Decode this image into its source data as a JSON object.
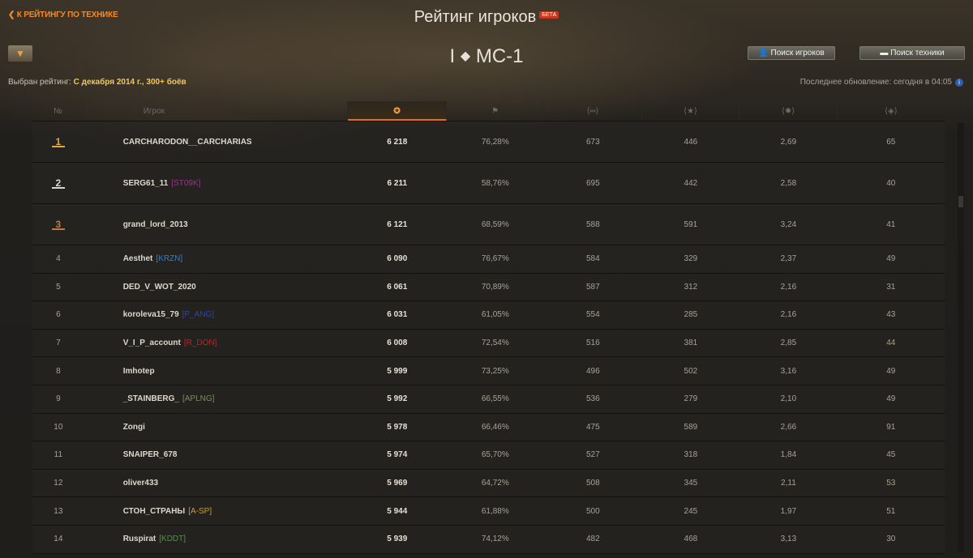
{
  "nav": {
    "back_label": "К РЕЙТИНГУ ПО ТЕХНИКЕ"
  },
  "header": {
    "title": "Рейтинг игроков",
    "beta": "БЕТА",
    "tier": "I",
    "tank": "МС-1"
  },
  "filter": {
    "label": "Выбран рейтинг:",
    "value": "С декабря 2014 г., 300+ боёв"
  },
  "buttons": {
    "players": "Поиск игроков",
    "tanks": "Поиск техники"
  },
  "update": "Последнее обновление: сегодня в 04:05",
  "columns": [
    "№",
    "Игрок",
    "rating-icon",
    "wins-flag-icon",
    "damage-icon",
    "xp-star-icon",
    "kills-icon",
    "spotted-icon"
  ],
  "medal_colors": {
    "1": "#e0a64a",
    "2": "#d6d6d6",
    "3": "#c07a4a"
  },
  "rows": [
    {
      "rank": "1",
      "name": "CARCHARODON__CARCHARIAS",
      "clan": "",
      "clan_color": "",
      "rating": "6 218",
      "wins": "76,28%",
      "dmg": "673",
      "xp": "446",
      "kills": "2,69",
      "spot": "65"
    },
    {
      "rank": "2",
      "name": "SERG61_11",
      "clan": "[ST09K]",
      "clan_color": "#a0308a",
      "rating": "6 211",
      "wins": "58,76%",
      "dmg": "695",
      "xp": "442",
      "kills": "2,58",
      "spot": "40"
    },
    {
      "rank": "3",
      "name": "grand_lord_2013",
      "clan": "",
      "clan_color": "",
      "rating": "6 121",
      "wins": "68,59%",
      "dmg": "588",
      "xp": "591",
      "kills": "3,24",
      "spot": "41"
    },
    {
      "rank": "4",
      "name": "Aesthet",
      "clan": "[KRZN]",
      "clan_color": "#2f7fd0",
      "rating": "6 090",
      "wins": "76,67%",
      "dmg": "584",
      "xp": "329",
      "kills": "2,37",
      "spot": "49"
    },
    {
      "rank": "5",
      "name": "DED_V_WOT_2020",
      "clan": "",
      "clan_color": "",
      "rating": "6 061",
      "wins": "70,89%",
      "dmg": "587",
      "xp": "312",
      "kills": "2,16",
      "spot": "31"
    },
    {
      "rank": "6",
      "name": "koroleva15_79",
      "clan": "[P_ANG]",
      "clan_color": "#35449a",
      "rating": "6 031",
      "wins": "61,05%",
      "dmg": "554",
      "xp": "285",
      "kills": "2,16",
      "spot": "43"
    },
    {
      "rank": "7",
      "name": "V_I_P_account",
      "clan": "[R_DON]",
      "clan_color": "#c02020",
      "rating": "6 008",
      "wins": "72,54%",
      "dmg": "516",
      "xp": "381",
      "kills": "2,85",
      "spot": "44"
    },
    {
      "rank": "8",
      "name": "Imhotep",
      "clan": "",
      "clan_color": "",
      "rating": "5 999",
      "wins": "73,25%",
      "dmg": "496",
      "xp": "502",
      "kills": "3,16",
      "spot": "49"
    },
    {
      "rank": "9",
      "name": "_STAINBERG_",
      "clan": "[APLNG]",
      "clan_color": "#7a8a68",
      "rating": "5 992",
      "wins": "66,55%",
      "dmg": "536",
      "xp": "279",
      "kills": "2,10",
      "spot": "49"
    },
    {
      "rank": "10",
      "name": "Zongi",
      "clan": "",
      "clan_color": "",
      "rating": "5 978",
      "wins": "66,46%",
      "dmg": "475",
      "xp": "589",
      "kills": "2,66",
      "spot": "91"
    },
    {
      "rank": "11",
      "name": "SNAIPER_678",
      "clan": "",
      "clan_color": "",
      "rating": "5 974",
      "wins": "65,70%",
      "dmg": "527",
      "xp": "318",
      "kills": "1,84",
      "spot": "45"
    },
    {
      "rank": "12",
      "name": "oliver433",
      "clan": "",
      "clan_color": "",
      "rating": "5 969",
      "wins": "64,72%",
      "dmg": "508",
      "xp": "345",
      "kills": "2,11",
      "spot": "53"
    },
    {
      "rank": "13",
      "name": "СТОН_СТРАНЫ",
      "clan": "[A-SP]",
      "clan_color": "#d09a30",
      "rating": "5 944",
      "wins": "61,88%",
      "dmg": "500",
      "xp": "245",
      "kills": "1,97",
      "spot": "51"
    },
    {
      "rank": "14",
      "name": "Ruspirat",
      "clan": "[KDDT]",
      "clan_color": "#4a9a3a",
      "rating": "5 939",
      "wins": "74,12%",
      "dmg": "482",
      "xp": "468",
      "kills": "3,13",
      "spot": "30"
    }
  ]
}
